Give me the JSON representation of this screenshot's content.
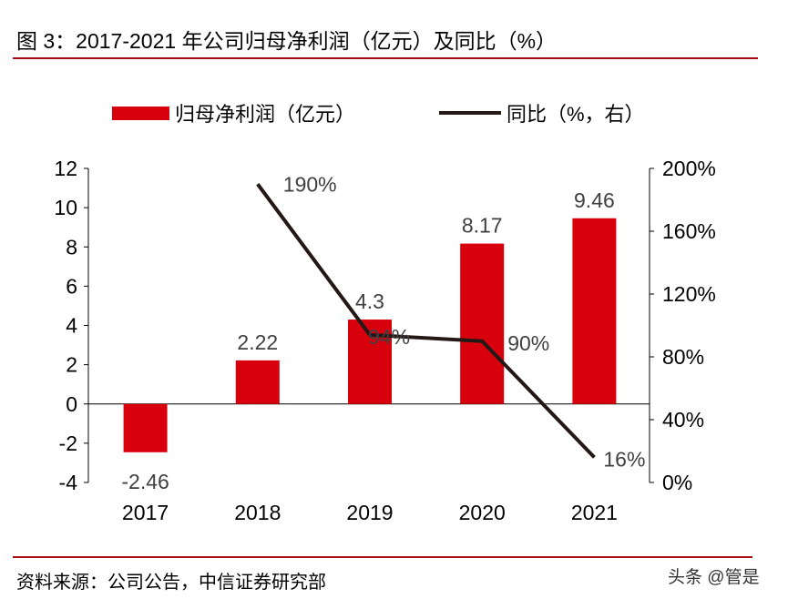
{
  "title": "图 3：2017-2021 年公司归母净利润（亿元）及同比（%）",
  "source": "资料来源：公司公告，中信证券研究部",
  "watermark": "头条 @管是",
  "colors": {
    "bar": "#d9000d",
    "line": "#231815",
    "rule": "#a50f15",
    "text": "#000000",
    "label": "#404040"
  },
  "chart_data": {
    "type": "bar+line",
    "categories": [
      "2017",
      "2018",
      "2019",
      "2020",
      "2021"
    ],
    "series": [
      {
        "name": "归母净利润（亿元）",
        "type": "bar",
        "axis": "left",
        "values": [
          -2.46,
          2.22,
          4.3,
          8.17,
          9.46
        ],
        "labels": [
          "-2.46",
          "2.22",
          "4.3",
          "8.17",
          "9.46"
        ]
      },
      {
        "name": "同比（%，右）",
        "type": "line",
        "axis": "right",
        "values": [
          null,
          190,
          94,
          90,
          16
        ],
        "labels": [
          "",
          "190%",
          "94%",
          "90%",
          "16%"
        ]
      }
    ],
    "left_axis": {
      "ylim": [
        -4,
        12
      ],
      "ticks": [
        "-4",
        "-2",
        "0",
        "2",
        "4",
        "6",
        "8",
        "10",
        "12"
      ]
    },
    "right_axis": {
      "ylim": [
        0,
        200
      ],
      "ticks": [
        "0%",
        "40%",
        "80%",
        "120%",
        "160%",
        "200%"
      ]
    },
    "legend": "top",
    "grid": false
  }
}
